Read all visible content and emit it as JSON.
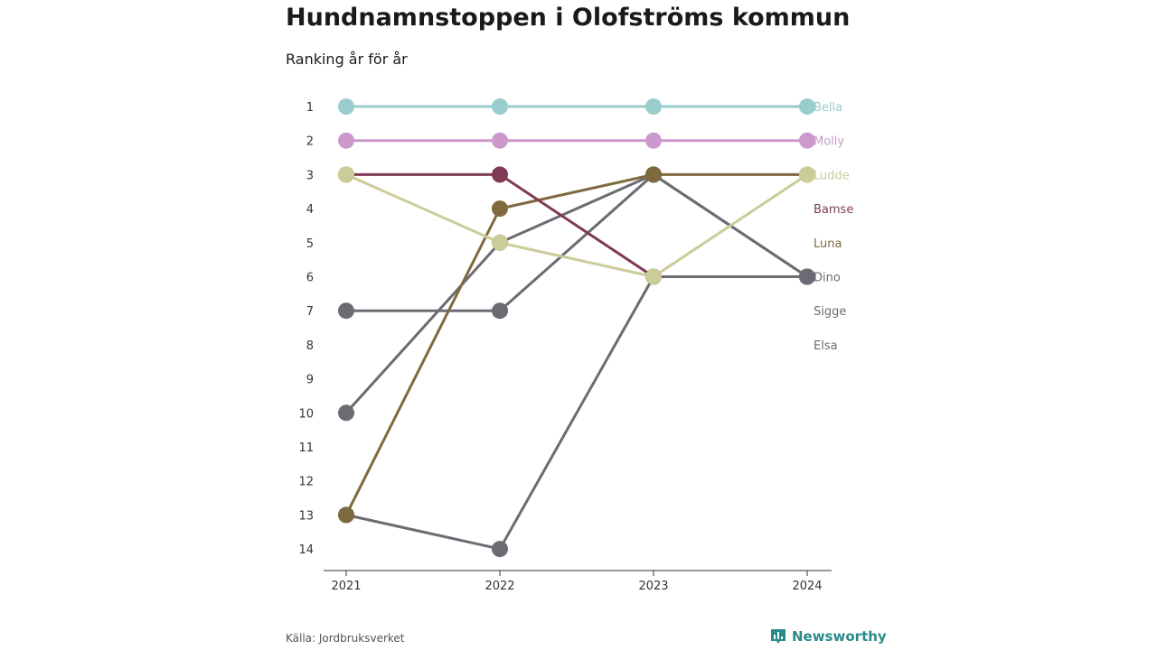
{
  "chart_data": {
    "type": "line",
    "title": "Hundnamnstoppen i Olofströms kommun",
    "subtitle": "Ranking år för år",
    "x": [
      "2021",
      "2022",
      "2023",
      "2024"
    ],
    "y_ticks": [
      1,
      2,
      3,
      4,
      5,
      6,
      7,
      8,
      9,
      10,
      11,
      12,
      13,
      14
    ],
    "ylim": [
      1,
      14
    ],
    "y_inverted": true,
    "grid": false,
    "series": [
      {
        "name": "Bella",
        "color": "#99cccc",
        "values": [
          1,
          1,
          1,
          1
        ]
      },
      {
        "name": "Molly",
        "color": "#cc99cc",
        "values": [
          2,
          2,
          2,
          2
        ]
      },
      {
        "name": "Ludde",
        "color": "#cccc99",
        "values": [
          3,
          5,
          6,
          3
        ]
      },
      {
        "name": "Bamse",
        "color": "#7f3a55",
        "values": [
          3,
          3,
          6,
          null
        ]
      },
      {
        "name": "Luna",
        "color": "#7f6a3f",
        "values": [
          13,
          4,
          3,
          3
        ]
      },
      {
        "name": "Dino",
        "color": "#6b6b73",
        "values": [
          10,
          5,
          3,
          6
        ]
      },
      {
        "name": "Sigge",
        "color": "#6b6b73",
        "values": [
          7,
          7,
          3,
          6
        ]
      },
      {
        "name": "Elsa",
        "color": "#6b6b73",
        "values": [
          13,
          14,
          6,
          6
        ]
      }
    ]
  },
  "source": "Källa: Jordbruksverket",
  "brand": {
    "name": "Newsworthy",
    "icon": "bar-chart-icon",
    "color": "#2a8a8a"
  }
}
